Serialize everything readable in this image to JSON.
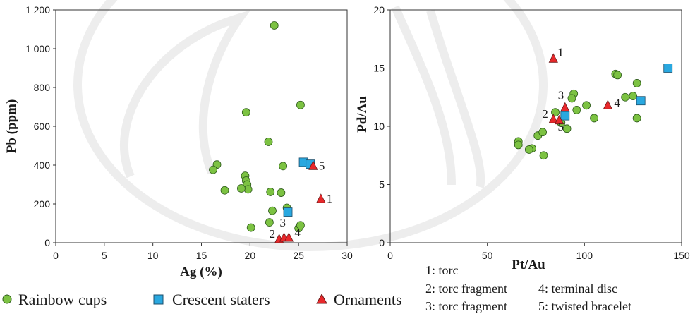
{
  "chart_data": [
    {
      "type": "scatter",
      "title": "",
      "xlabel": "Ag (%)",
      "ylabel": "Pb (ppm)",
      "xlim": [
        0,
        30
      ],
      "ylim": [
        0,
        1200
      ],
      "x_ticks": [
        "0",
        "5",
        "10",
        "15",
        "20",
        "25",
        "30"
      ],
      "y_ticks": [
        "0",
        "200",
        "400",
        "600",
        "800",
        "1 000",
        "1 200"
      ],
      "series": [
        {
          "name": "Rainbow cups",
          "marker": "circle",
          "color": "#7cc242",
          "points": [
            [
              22.5,
              1120
            ],
            [
              25.2,
              710
            ],
            [
              19.6,
              672
            ],
            [
              21.9,
              520
            ],
            [
              23.4,
              395
            ],
            [
              16.6,
              403
            ],
            [
              16.2,
              376
            ],
            [
              19.5,
              345
            ],
            [
              19.6,
              320
            ],
            [
              19.7,
              300
            ],
            [
              19.8,
              275
            ],
            [
              17.4,
              270
            ],
            [
              19.1,
              280
            ],
            [
              22.1,
              262
            ],
            [
              23.2,
              258
            ],
            [
              23.8,
              180
            ],
            [
              22.3,
              165
            ],
            [
              22.0,
              105
            ],
            [
              20.1,
              78
            ],
            [
              25.0,
              75
            ],
            [
              25.2,
              90
            ]
          ]
        },
        {
          "name": "Crescent staters",
          "marker": "square",
          "color": "#29a8e0",
          "points": [
            [
              25.5,
              415
            ],
            [
              26.2,
              405
            ],
            [
              23.9,
              158
            ]
          ]
        },
        {
          "name": "Ornaments",
          "marker": "triangle",
          "color": "#e8282b",
          "points": [
            [
              27.3,
              225
            ],
            [
              26.5,
              395
            ],
            [
              23.0,
              18
            ],
            [
              23.5,
              25
            ],
            [
              24.0,
              25
            ]
          ],
          "labels": [
            "1",
            "5",
            "2",
            "3",
            "4"
          ]
        }
      ]
    },
    {
      "type": "scatter",
      "title": "",
      "xlabel": "Pt/Au",
      "ylabel": "Pd/Au",
      "xlim": [
        0,
        150
      ],
      "ylim": [
        0,
        20
      ],
      "x_ticks": [
        "0",
        "50",
        "100",
        "150"
      ],
      "y_ticks": [
        "0",
        "5",
        "10",
        "15",
        "20"
      ],
      "series": [
        {
          "name": "Rainbow cups",
          "marker": "circle",
          "color": "#7cc242",
          "points": [
            [
              94.5,
              12.8
            ],
            [
              93.5,
              12.4
            ],
            [
              116,
              14.5
            ],
            [
              117,
              14.4
            ],
            [
              127,
              13.7
            ],
            [
              121,
              12.5
            ],
            [
              125,
              12.6
            ],
            [
              127,
              10.7
            ],
            [
              85,
              11.2
            ],
            [
              96,
              11.4
            ],
            [
              101,
              11.8
            ],
            [
              105,
              10.7
            ],
            [
              88,
              10.3
            ],
            [
              91,
              9.8
            ],
            [
              76,
              9.2
            ],
            [
              78.5,
              9.5
            ],
            [
              66,
              8.7
            ],
            [
              66,
              8.4
            ],
            [
              73,
              8.1
            ],
            [
              71.5,
              8.0
            ],
            [
              79,
              7.5
            ]
          ]
        },
        {
          "name": "Crescent staters",
          "marker": "square",
          "color": "#29a8e0",
          "points": [
            [
              143,
              15.0
            ],
            [
              129,
              12.2
            ],
            [
              90,
              10.9
            ]
          ]
        },
        {
          "name": "Ornaments",
          "marker": "triangle",
          "color": "#e8282b",
          "points": [
            [
              84,
              15.8
            ],
            [
              90,
              11.6
            ],
            [
              112,
              11.8
            ],
            [
              84,
              10.6
            ],
            [
              87,
              10.5
            ]
          ],
          "labels": [
            "1",
            "3",
            "4",
            "2",
            "5"
          ]
        }
      ]
    }
  ],
  "legend": {
    "items": [
      {
        "label": "Rainbow cups",
        "marker": "circle",
        "color": "#7cc242"
      },
      {
        "label": "Crescent staters",
        "marker": "square",
        "color": "#29a8e0"
      },
      {
        "label": "Ornaments",
        "marker": "triangle",
        "color": "#e8282b"
      }
    ]
  },
  "annotations": {
    "items": [
      "1: torc",
      "2: torc fragment",
      "3: torc fragment",
      "4: terminal disc",
      "5: twisted bracelet"
    ]
  }
}
